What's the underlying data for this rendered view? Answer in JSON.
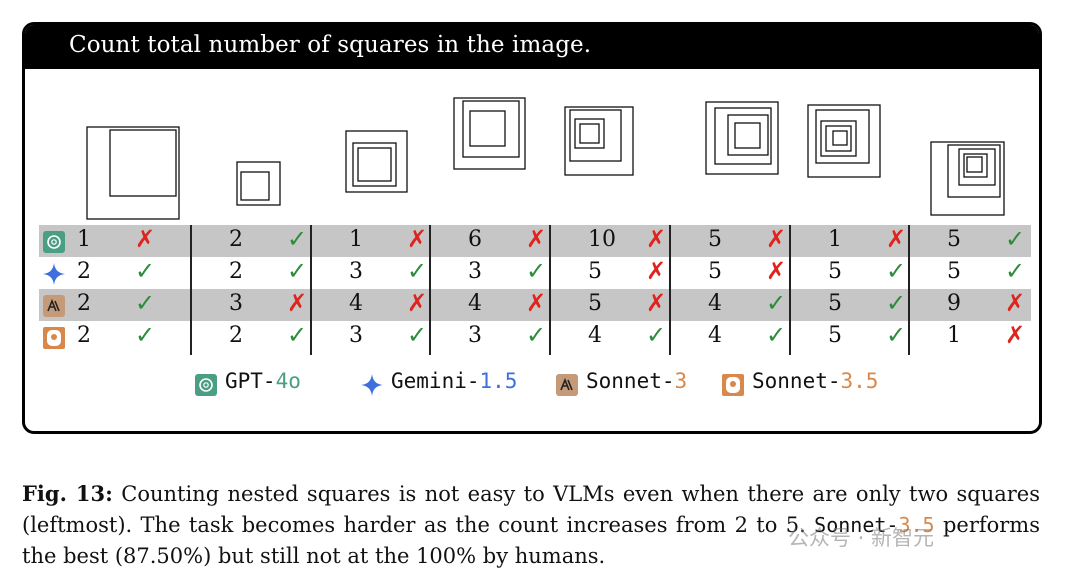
{
  "panel": {
    "title": "Count total number of squares in the image."
  },
  "models": [
    {
      "key": "gpt4o",
      "icon": "openai-logo-icon",
      "color": "#4a9e84"
    },
    {
      "key": "gemini15",
      "icon": "gemini-star-icon",
      "color": "#3f6fdc"
    },
    {
      "key": "sonnet3",
      "icon": "anthropic-logo-icon",
      "color": "#c49a78"
    },
    {
      "key": "sonnet35",
      "icon": "claude-head-icon",
      "color": "#d8884a"
    }
  ],
  "results": {
    "columns": [
      "2 squares",
      "2 squares",
      "3 squares",
      "3 squares",
      "4 squares",
      "4 squares",
      "5 squares",
      "5 squares"
    ],
    "rows": [
      {
        "model": "gpt4o",
        "shaded": true,
        "cells": [
          {
            "n": "1",
            "ok": false
          },
          {
            "n": "2",
            "ok": true
          },
          {
            "n": "1",
            "ok": false
          },
          {
            "n": "6",
            "ok": false
          },
          {
            "n": "10",
            "ok": false
          },
          {
            "n": "5",
            "ok": false
          },
          {
            "n": "1",
            "ok": false
          },
          {
            "n": "5",
            "ok": true
          }
        ]
      },
      {
        "model": "gemini15",
        "shaded": false,
        "cells": [
          {
            "n": "2",
            "ok": true
          },
          {
            "n": "2",
            "ok": true
          },
          {
            "n": "3",
            "ok": true
          },
          {
            "n": "3",
            "ok": true
          },
          {
            "n": "5",
            "ok": false
          },
          {
            "n": "5",
            "ok": false
          },
          {
            "n": "5",
            "ok": true
          },
          {
            "n": "5",
            "ok": true
          }
        ]
      },
      {
        "model": "sonnet3",
        "shaded": true,
        "cells": [
          {
            "n": "2",
            "ok": true
          },
          {
            "n": "3",
            "ok": false
          },
          {
            "n": "4",
            "ok": false
          },
          {
            "n": "4",
            "ok": false
          },
          {
            "n": "5",
            "ok": false
          },
          {
            "n": "4",
            "ok": true
          },
          {
            "n": "5",
            "ok": true
          },
          {
            "n": "9",
            "ok": false
          }
        ]
      },
      {
        "model": "sonnet35",
        "shaded": false,
        "cells": [
          {
            "n": "2",
            "ok": true
          },
          {
            "n": "2",
            "ok": true
          },
          {
            "n": "3",
            "ok": true
          },
          {
            "n": "3",
            "ok": true
          },
          {
            "n": "4",
            "ok": true
          },
          {
            "n": "4",
            "ok": true
          },
          {
            "n": "5",
            "ok": true
          },
          {
            "n": "1",
            "ok": false
          }
        ]
      }
    ]
  },
  "marks": {
    "ok": "✓",
    "bad": "✗"
  },
  "legend": {
    "gpt4o": {
      "base": "GPT-",
      "version": "4o",
      "version_color": "#4a9e84"
    },
    "gemini15": {
      "base": "Gemini-",
      "version": "1.5",
      "version_color": "#3f6fdc"
    },
    "sonnet3": {
      "base": "Sonnet-",
      "version": "3",
      "version_color": "#d8884a"
    },
    "sonnet35": {
      "base": "Sonnet-",
      "version": "3.5",
      "version_color": "#d8884a"
    }
  },
  "caption": {
    "fig_label": "Fig. 13:",
    "text1": " Counting nested squares is not easy to VLMs even when there are only two squares (leftmost). The task becomes harder as the count increases from 2 to 5. ",
    "model_base": "Sonnet-",
    "model_version": "3.5",
    "text2": " performs the best (87.50%) but still not at the 100% by humans."
  },
  "watermark": "公众号 · 新智元"
}
